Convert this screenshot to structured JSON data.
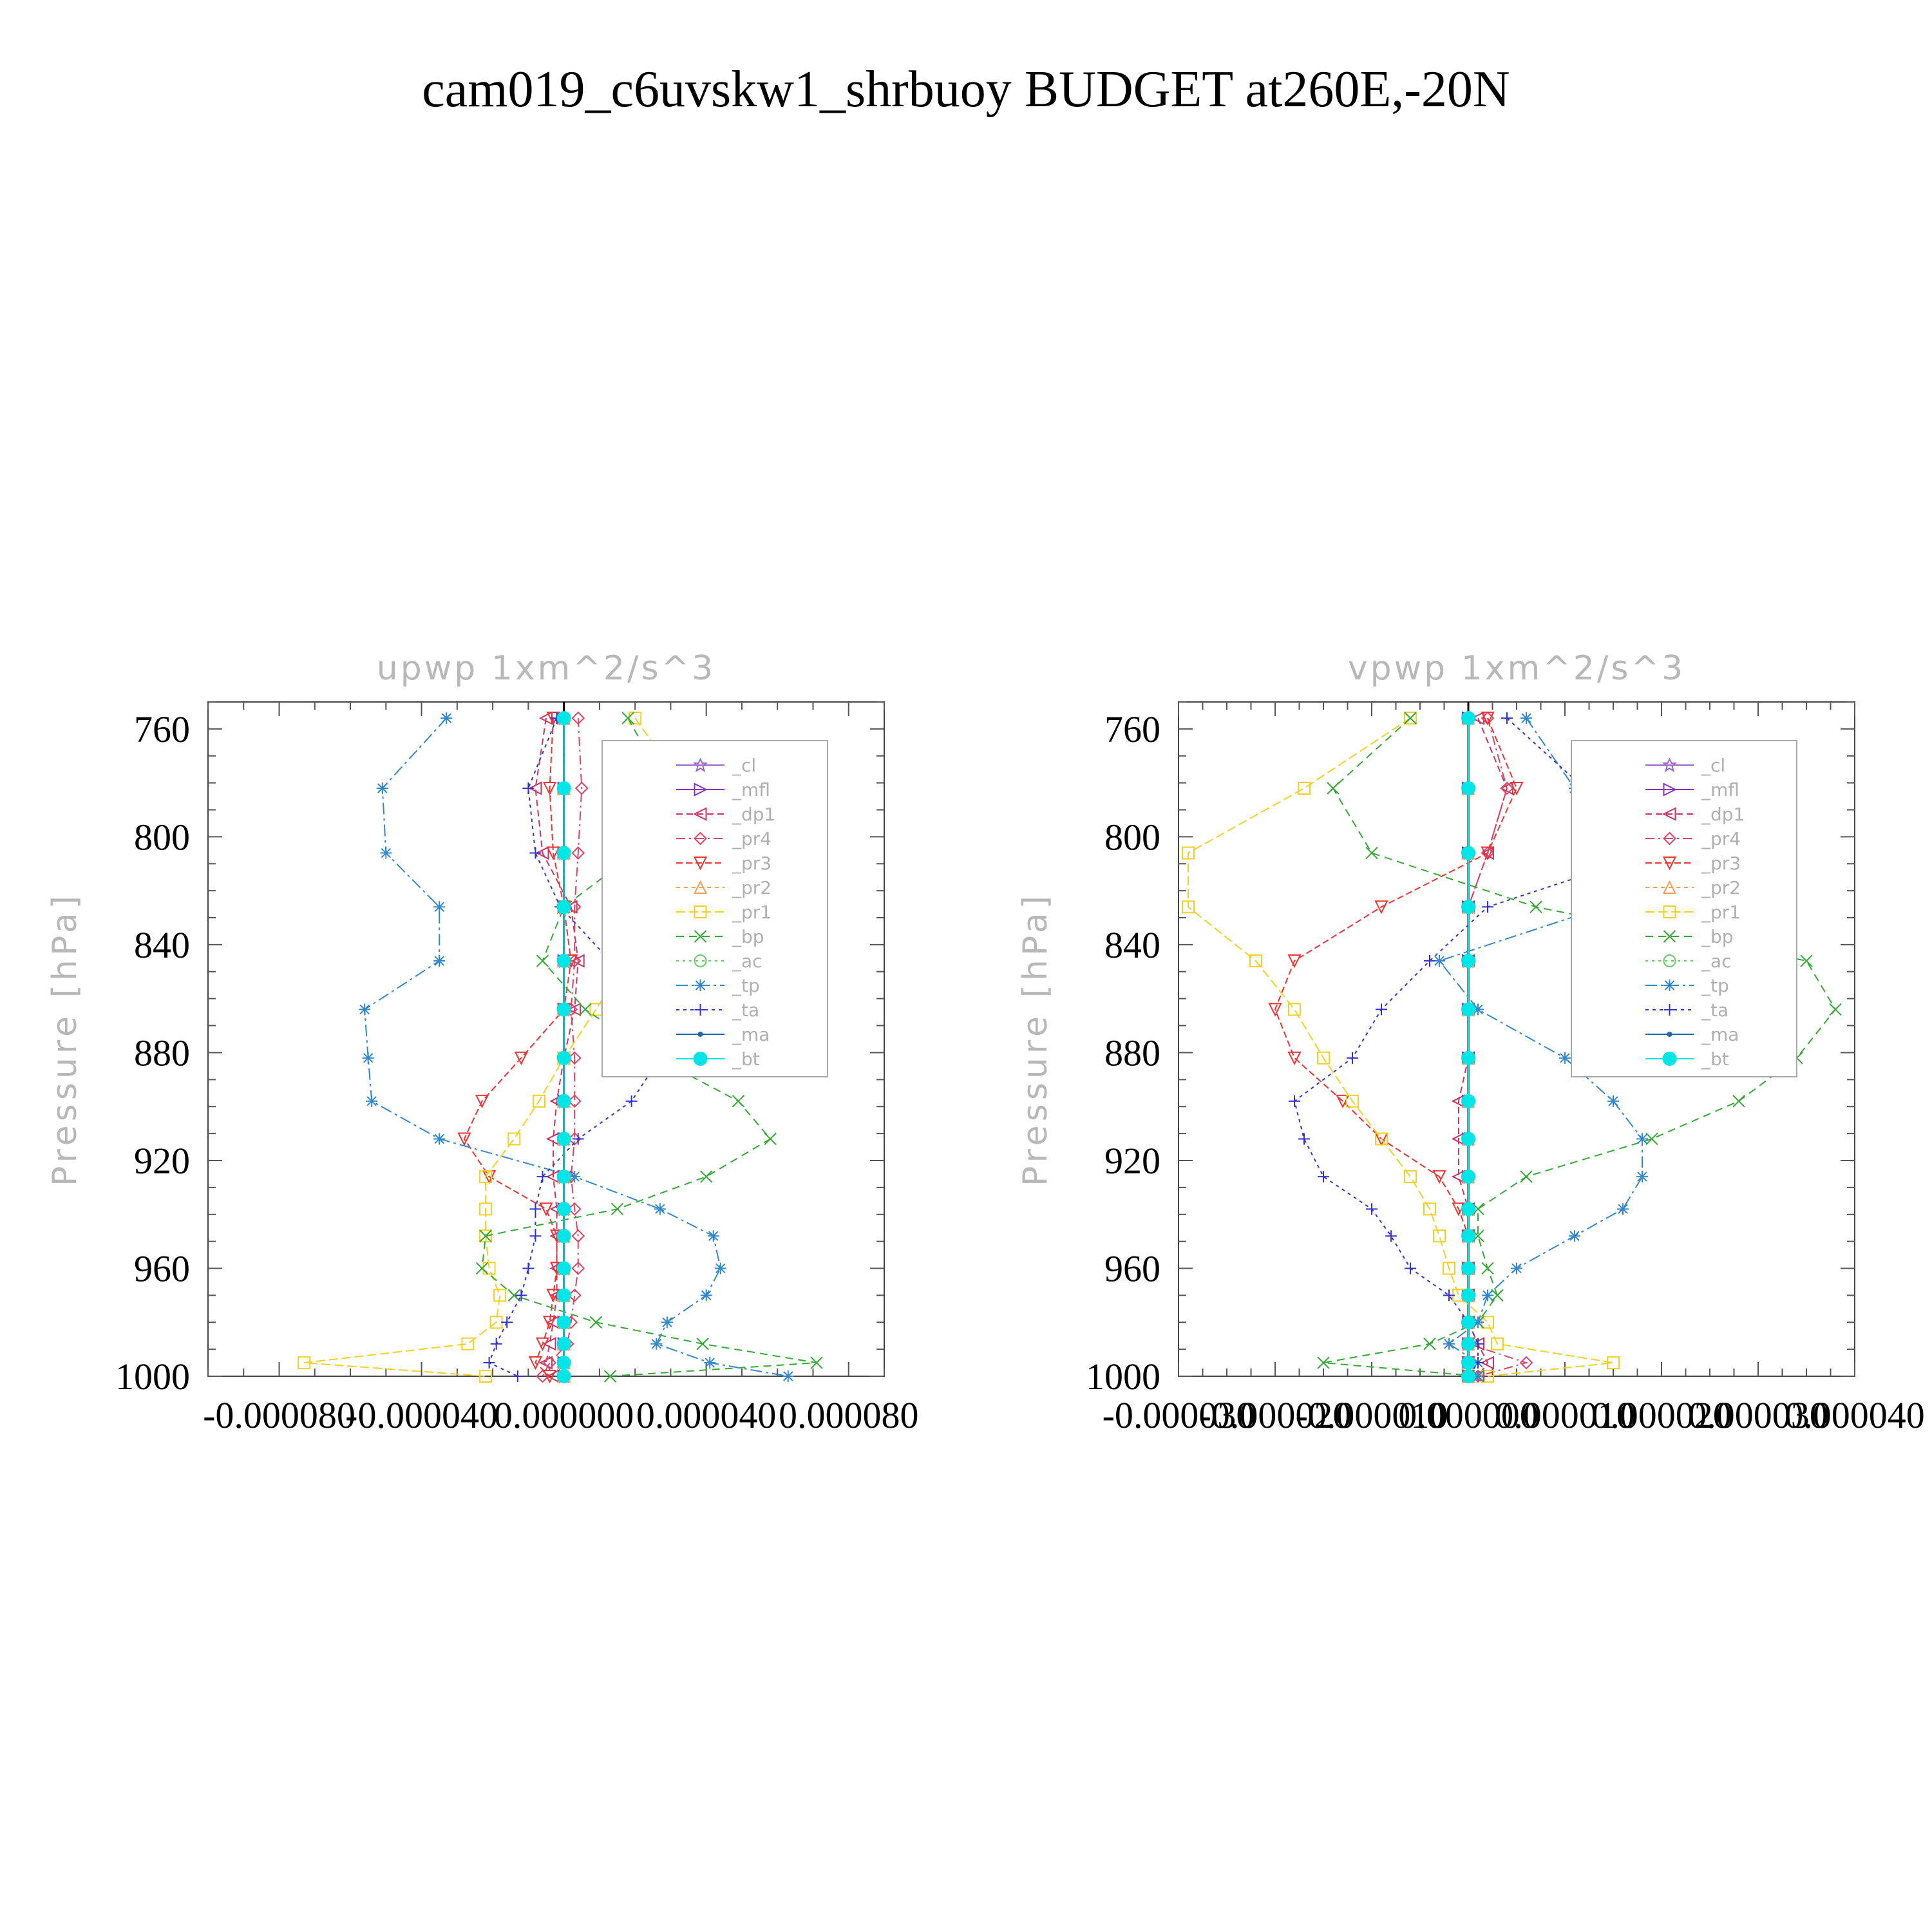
{
  "title": "cam019_c6uvskw1_shrbuoy  BUDGET at260E,-20N",
  "legend_entries": [
    "_cl",
    "_mfl",
    "_dp1",
    "_pr4",
    "_pr3",
    "_pr2",
    "_pr1",
    "_bp",
    "_ac",
    "_tp",
    "_ta",
    "_ma",
    "_bt"
  ],
  "series_styles": [
    {
      "name": "_cl",
      "color": "#9966cc",
      "marker": "star"
    },
    {
      "name": "_mfl",
      "color": "#8833bb",
      "marker": "tri-right"
    },
    {
      "name": "_dp1",
      "color": "#cc3366",
      "marker": "tri-left"
    },
    {
      "name": "_pr4",
      "color": "#dd4466",
      "marker": "diamond"
    },
    {
      "name": "_pr3",
      "color": "#ee3333",
      "marker": "tri-down"
    },
    {
      "name": "_pr2",
      "color": "#f5a050",
      "marker": "tri-up"
    },
    {
      "name": "_pr1",
      "color": "#f5d020",
      "marker": "square"
    },
    {
      "name": "_bp",
      "color": "#33aa33",
      "marker": "x"
    },
    {
      "name": "_ac",
      "color": "#66cc66",
      "marker": "circle"
    },
    {
      "name": "_tp",
      "color": "#3388cc",
      "marker": "asterisk"
    },
    {
      "name": "_ta",
      "color": "#3333cc",
      "marker": "plus"
    },
    {
      "name": "_ma",
      "color": "#2266aa",
      "marker": "dot"
    },
    {
      "name": "_bt",
      "color": "#00e5e5",
      "marker": "filled-circle"
    }
  ],
  "chart_data": [
    {
      "type": "line",
      "title": "upwp   1xm^2/s^3",
      "ylabel": "Pressure  [hPa]",
      "xlabel": "",
      "xlim": [
        -0.0001,
        9e-05
      ],
      "ylim": [
        1000,
        750
      ],
      "xticks": [
        -8e-05,
        -4e-05,
        0,
        4e-05,
        8e-05
      ],
      "xtick_labels": [
        "-0.000080",
        "-0.000040",
        "0.000000",
        "0.000040",
        "0.000080"
      ],
      "yticks": [
        760,
        800,
        840,
        880,
        920,
        960,
        1000
      ],
      "ytick_labels": [
        "760",
        "800",
        "840",
        "880",
        "920",
        "960",
        "1000"
      ],
      "legend": "upper-right",
      "y": [
        756,
        782,
        806,
        826,
        846,
        864,
        882,
        898,
        912,
        926,
        938,
        948,
        960,
        970,
        980,
        988,
        995,
        1000
      ],
      "series": [
        {
          "name": "_cl",
          "values": [
            0,
            0,
            0,
            0,
            0,
            0,
            0,
            0,
            0,
            0,
            0,
            0,
            0,
            0,
            0,
            0,
            0,
            0
          ]
        },
        {
          "name": "_mfl",
          "values": [
            0,
            0,
            0,
            0,
            0,
            0,
            0,
            0,
            0,
            0,
            0,
            0,
            0,
            0,
            0,
            0,
            0,
            0
          ]
        },
        {
          "name": "_dp1",
          "values": [
            -5e-06,
            -8e-06,
            -6e-06,
            2e-06,
            4e-06,
            3e-06,
            0,
            -2e-06,
            -3e-06,
            -3e-06,
            -2e-06,
            -2e-06,
            -2e-06,
            -2e-06,
            -3e-06,
            -4e-06,
            -5e-06,
            -3e-06
          ]
        },
        {
          "name": "_pr4",
          "values": [
            4e-06,
            5e-06,
            4e-06,
            3e-06,
            3e-06,
            2e-06,
            3e-06,
            3e-06,
            3e-06,
            2e-06,
            3e-06,
            4e-06,
            4e-06,
            3e-06,
            2e-06,
            1e-06,
            -4e-06,
            -6e-06
          ]
        },
        {
          "name": "_pr3",
          "values": [
            -3e-06,
            -4e-06,
            -3e-06,
            0,
            2e-06,
            0,
            -1.2e-05,
            -2.3e-05,
            -2.8e-05,
            -2.1e-05,
            -5e-06,
            -2e-06,
            -2e-06,
            -3e-06,
            -4e-06,
            -6e-06,
            -8e-06,
            -4e-06
          ]
        },
        {
          "name": "_pr2",
          "values": [
            0,
            0,
            0,
            0,
            0,
            0,
            0,
            0,
            0,
            0,
            0,
            0,
            0,
            0,
            0,
            0,
            0,
            0
          ]
        },
        {
          "name": "_pr1",
          "values": [
            2e-05,
            3.4e-05,
            3.6e-05,
            2.8e-05,
            1.8e-05,
            9e-06,
            0,
            -7e-06,
            -1.4e-05,
            -2.2e-05,
            -2.2e-05,
            -2.2e-05,
            -2.1e-05,
            -1.8e-05,
            -1.9e-05,
            -2.7e-05,
            -7.3e-05,
            -2.2e-05
          ]
        },
        {
          "name": "_bp",
          "values": [
            1.8e-05,
            2.9e-05,
            2e-05,
            0,
            -6e-06,
            6e-06,
            2.6e-05,
            4.9e-05,
            5.8e-05,
            4e-05,
            1.5e-05,
            -2.2e-05,
            -2.3e-05,
            -1.4e-05,
            9e-06,
            3.9e-05,
            7.1e-05,
            1.3e-05
          ]
        },
        {
          "name": "_ac",
          "values": [
            0,
            0,
            0,
            0,
            0,
            0,
            0,
            0,
            0,
            0,
            0,
            0,
            0,
            0,
            0,
            0,
            0,
            0
          ]
        },
        {
          "name": "_tp",
          "values": [
            -3.3e-05,
            -5.1e-05,
            -5e-05,
            -3.5e-05,
            -3.5e-05,
            -5.6e-05,
            -5.5e-05,
            -5.4e-05,
            -3.5e-05,
            3e-06,
            2.7e-05,
            4.2e-05,
            4.4e-05,
            4e-05,
            2.9e-05,
            2.6e-05,
            4.1e-05,
            6.3e-05
          ]
        },
        {
          "name": "_ta",
          "values": [
            -2e-06,
            -1e-05,
            -8e-06,
            -1e-06,
            1.3e-05,
            2.5e-05,
            2.7e-05,
            1.9e-05,
            4e-06,
            -6e-06,
            -8e-06,
            -8e-06,
            -1e-05,
            -1.2e-05,
            -1.6e-05,
            -1.9e-05,
            -2.1e-05,
            -1.3e-05
          ]
        },
        {
          "name": "_ma",
          "values": [
            0,
            0,
            0,
            0,
            0,
            0,
            0,
            0,
            0,
            0,
            0,
            0,
            0,
            0,
            0,
            0,
            0,
            0
          ]
        },
        {
          "name": "_bt",
          "values": [
            0,
            0,
            0,
            0,
            0,
            0,
            0,
            0,
            0,
            0,
            0,
            0,
            0,
            0,
            0,
            0,
            0,
            0
          ]
        }
      ]
    },
    {
      "type": "line",
      "title": "vpwp   1xm^2/s^3",
      "ylabel": "Pressure  [hPa]",
      "xlabel": "",
      "xlim": [
        -3e-05,
        4e-05
      ],
      "ylim": [
        1000,
        750
      ],
      "xticks": [
        -3e-05,
        -2e-05,
        -1e-05,
        0,
        1e-05,
        2e-05,
        3e-05,
        4e-05
      ],
      "xtick_labels": [
        "-0.000030",
        "-0.000020",
        "-0.000010",
        "0.000000",
        "0.000010",
        "0.000020",
        "0.000030",
        "0.000040"
      ],
      "yticks": [
        760,
        800,
        840,
        880,
        920,
        960,
        1000
      ],
      "ytick_labels": [
        "760",
        "800",
        "840",
        "880",
        "920",
        "960",
        "1000"
      ],
      "legend": "upper-right",
      "y": [
        756,
        782,
        806,
        826,
        846,
        864,
        882,
        898,
        912,
        926,
        938,
        948,
        960,
        970,
        980,
        988,
        995,
        1000
      ],
      "series": [
        {
          "name": "_cl",
          "values": [
            0,
            0,
            0,
            0,
            0,
            0,
            0,
            0,
            0,
            0,
            0,
            0,
            0,
            0,
            0,
            0,
            0,
            0
          ]
        },
        {
          "name": "_mfl",
          "values": [
            0,
            0,
            0,
            0,
            0,
            0,
            0,
            0,
            0,
            0,
            0,
            0,
            0,
            0,
            0,
            0,
            0,
            0
          ]
        },
        {
          "name": "_dp1",
          "values": [
            1e-06,
            4e-06,
            2e-06,
            0,
            0,
            0,
            0,
            -1e-06,
            -1e-06,
            -1e-06,
            0,
            0,
            0,
            0,
            0,
            1e-06,
            2e-06,
            1e-06
          ]
        },
        {
          "name": "_pr4",
          "values": [
            2e-06,
            4e-06,
            2e-06,
            0,
            0,
            0,
            0,
            0,
            0,
            0,
            0,
            0,
            0,
            0,
            0,
            0,
            6e-06,
            1e-06
          ]
        },
        {
          "name": "_pr3",
          "values": [
            2e-06,
            5e-06,
            2e-06,
            -9e-06,
            -1.8e-05,
            -2e-05,
            -1.8e-05,
            -1.3e-05,
            -9e-06,
            -3e-06,
            -1e-06,
            0,
            0,
            0,
            0,
            0,
            0,
            0
          ]
        },
        {
          "name": "_pr2",
          "values": [
            0,
            0,
            0,
            0,
            0,
            0,
            0,
            0,
            0,
            0,
            0,
            0,
            0,
            0,
            0,
            0,
            0,
            0
          ]
        },
        {
          "name": "_pr1",
          "values": [
            -6e-06,
            -1.7e-05,
            -2.9e-05,
            -2.9e-05,
            -2.2e-05,
            -1.8e-05,
            -1.5e-05,
            -1.2e-05,
            -9e-06,
            -6e-06,
            -4e-06,
            -3e-06,
            -2e-06,
            -1e-06,
            2e-06,
            3e-06,
            1.5e-05,
            2e-06
          ]
        },
        {
          "name": "_bp",
          "values": [
            -6e-06,
            -1.4e-05,
            -1e-05,
            7e-06,
            3.5e-05,
            3.8e-05,
            3.4e-05,
            2.8e-05,
            1.9e-05,
            6e-06,
            1e-06,
            1e-06,
            2e-06,
            3e-06,
            1e-06,
            -4e-06,
            -1.5e-05,
            1e-06
          ]
        },
        {
          "name": "_ac",
          "values": [
            0,
            0,
            0,
            0,
            0,
            0,
            0,
            0,
            0,
            0,
            0,
            0,
            0,
            0,
            0,
            0,
            0,
            0
          ]
        },
        {
          "name": "_tp",
          "values": [
            6e-06,
            1.1e-05,
            1.9e-05,
            1.4e-05,
            -3e-06,
            1e-06,
            1e-05,
            1.5e-05,
            1.8e-05,
            1.8e-05,
            1.6e-05,
            1.1e-05,
            5e-06,
            2e-06,
            1e-06,
            -2e-06,
            1e-06,
            1e-06
          ]
        },
        {
          "name": "_ta",
          "values": [
            4e-06,
            1.2e-05,
            1.9e-05,
            2e-06,
            -4e-06,
            -9e-06,
            -1.2e-05,
            -1.8e-05,
            -1.7e-05,
            -1.5e-05,
            -1e-05,
            -8e-06,
            -6e-06,
            -2e-06,
            0,
            1e-06,
            1e-06,
            0
          ]
        },
        {
          "name": "_ma",
          "values": [
            0,
            0,
            0,
            0,
            0,
            0,
            0,
            0,
            0,
            0,
            0,
            0,
            0,
            0,
            0,
            0,
            0,
            0
          ]
        },
        {
          "name": "_bt",
          "values": [
            0,
            0,
            0,
            0,
            0,
            0,
            0,
            0,
            0,
            0,
            0,
            0,
            0,
            0,
            0,
            0,
            0,
            0
          ]
        }
      ]
    }
  ]
}
